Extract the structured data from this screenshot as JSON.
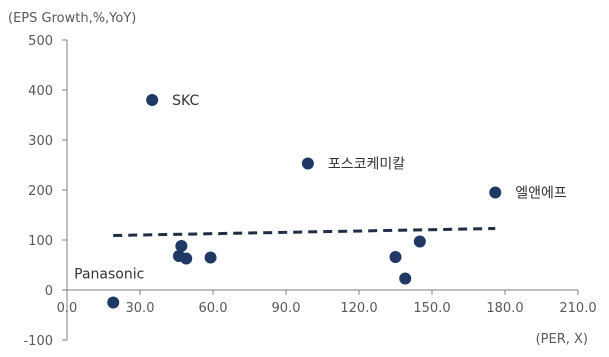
{
  "chart_data": {
    "type": "scatter",
    "title": "",
    "ylabel": "(EPS Growth,%,YoY)",
    "xlabel": "(PER, X)",
    "xlim": [
      0,
      210
    ],
    "ylim": [
      -100,
      500
    ],
    "x_ticks": [
      "0.0",
      "30.0",
      "60.0",
      "90.0",
      "120.0",
      "150.0",
      "180.0",
      "210.0"
    ],
    "x_tick_values": [
      0,
      30,
      60,
      90,
      120,
      150,
      180,
      210
    ],
    "y_ticks": [
      "-100",
      "0",
      "100",
      "200",
      "300",
      "400",
      "500"
    ],
    "y_tick_values": [
      -100,
      0,
      100,
      200,
      300,
      400,
      500
    ],
    "grid": false,
    "marker_color": "#1f3864",
    "trendline_color": "#1f2d46",
    "points": [
      {
        "x": 35,
        "y": 380,
        "label": "SKC"
      },
      {
        "x": 99,
        "y": 253,
        "label": "포스코케미칼"
      },
      {
        "x": 176,
        "y": 195,
        "label": "엘앤에프"
      },
      {
        "x": 19,
        "y": -25,
        "label": "Panasonic"
      },
      {
        "x": 47,
        "y": 88,
        "label": ""
      },
      {
        "x": 46,
        "y": 68,
        "label": ""
      },
      {
        "x": 49,
        "y": 63,
        "label": ""
      },
      {
        "x": 59,
        "y": 65,
        "label": ""
      },
      {
        "x": 135,
        "y": 66,
        "label": ""
      },
      {
        "x": 145,
        "y": 97,
        "label": ""
      },
      {
        "x": 139,
        "y": 23,
        "label": ""
      }
    ],
    "trendline": {
      "x": [
        19,
        176
      ],
      "y": [
        109,
        123
      ],
      "style": "dashed"
    }
  }
}
